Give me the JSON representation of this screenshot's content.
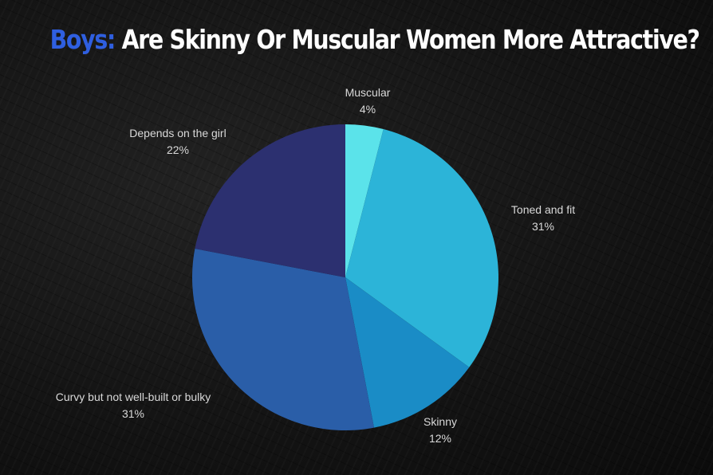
{
  "title_prefix": "Boys:",
  "title_main": "Are Skinny Or Muscular Women More Attractive?",
  "colors": {
    "accent": "#2f5fe0",
    "background": "#141414",
    "label": "#d9d9d9"
  },
  "chart_data": {
    "type": "pie",
    "title": "Boys: Are Skinny Or Muscular Women More Attractive?",
    "start_angle_deg": 0,
    "direction": "clockwise",
    "slices": [
      {
        "label": "Muscular",
        "value_label": "4%",
        "value": 4,
        "color": "#5be3ea"
      },
      {
        "label": "Toned and fit",
        "value_label": "31%",
        "value": 31,
        "color": "#2cb4d8"
      },
      {
        "label": "Skinny",
        "value_label": "12%",
        "value": 12,
        "color": "#1a8cc6"
      },
      {
        "label": "Curvy but not well-built or bulky",
        "value_label": "31%",
        "value": 31,
        "color": "#2a5ea8"
      },
      {
        "label": "Depends on the girl",
        "value_label": "22%",
        "value": 22,
        "color": "#2c3070"
      }
    ]
  }
}
